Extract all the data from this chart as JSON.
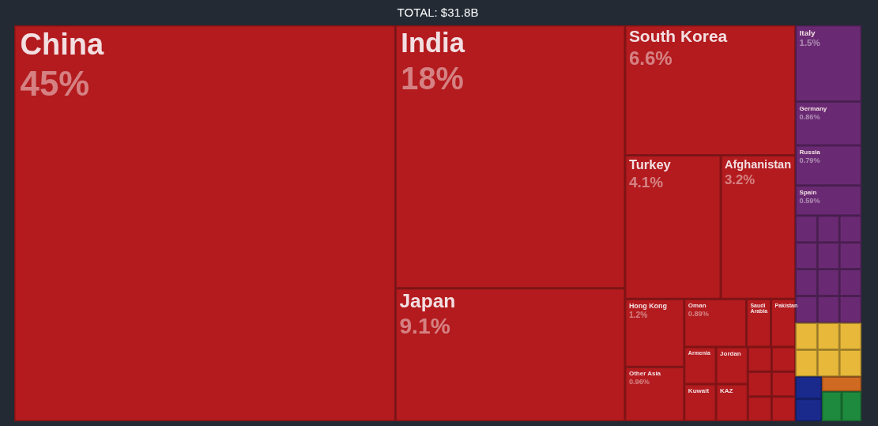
{
  "chart_data": {
    "type": "other",
    "title": "TOTAL: $31.8B",
    "categories": [
      "China",
      "India",
      "Japan",
      "South Korea",
      "Turkey",
      "Afghanistan",
      "Hong Kong",
      "Other Asia",
      "Oman",
      "Saudi Arabia",
      "Pakistan",
      "Armenia",
      "Kuwait",
      "Jordan",
      "KAZ",
      null,
      null,
      null,
      null,
      null,
      null,
      "Italy",
      "Germany",
      "Russia",
      "Spain",
      null,
      null,
      null,
      null,
      null,
      null,
      null,
      null,
      null,
      null,
      null,
      null,
      null,
      null,
      null,
      null,
      null,
      null,
      null,
      null,
      null,
      null,
      null
    ],
    "values": [
      45,
      18,
      9.1,
      6.6,
      4.1,
      3.2,
      1.2,
      0.96,
      0.89,
      null,
      null,
      null,
      null,
      null,
      null,
      null,
      null,
      null,
      null,
      null,
      null,
      1.5,
      0.86,
      0.79,
      0.59,
      null,
      null,
      null,
      null,
      null,
      null,
      null,
      null,
      null,
      null,
      null,
      null,
      null,
      null,
      null,
      null,
      null,
      null,
      null,
      null,
      null,
      null,
      null
    ],
    "value_labels": [
      "45%",
      "18%",
      "9.1%",
      "6.6%",
      "4.1%",
      "3.2%",
      "1.2%",
      "0.96%",
      "0.89%",
      null,
      null,
      null,
      null,
      null,
      null,
      null,
      null,
      null,
      null,
      null,
      null,
      "1.5%",
      "0.86%",
      "0.79%",
      "0.59%",
      null,
      null,
      null,
      null,
      null,
      null,
      null,
      null,
      null,
      null,
      null,
      null,
      null,
      null,
      null,
      null,
      null,
      null,
      null,
      null,
      null,
      null,
      null
    ],
    "colors": [
      "#b31b1e",
      "#b31b1e",
      "#b31b1e",
      "#b31b1e",
      "#b31b1e",
      "#b31b1e",
      "#b31b1e",
      "#b31b1e",
      "#b31b1e",
      "#b31b1e",
      "#b31b1e",
      "#b31b1e",
      "#b31b1e",
      "#b31b1e",
      "#b31b1e",
      "#b31b1e",
      "#b31b1e",
      "#b31b1e",
      "#b31b1e",
      "#b31b1e",
      "#b31b1e",
      "#6a2a73",
      "#6a2a73",
      "#6a2a73",
      "#6a2a73",
      "#6a2a73",
      "#6a2a73",
      "#6a2a73",
      "#6a2a73",
      "#6a2a73",
      "#6a2a73",
      "#6a2a73",
      "#6a2a73",
      "#6a2a73",
      "#6a2a73",
      "#6a2a73",
      "#6a2a73",
      "#e8b83a",
      "#e8b83a",
      "#e8b83a",
      "#e8b83a",
      "#e8b83a",
      "#e8b83a",
      "#1a2a8c",
      "#1a2a8c",
      "#d06a22",
      "#1e8a3e",
      "#1e8a3e"
    ]
  }
}
